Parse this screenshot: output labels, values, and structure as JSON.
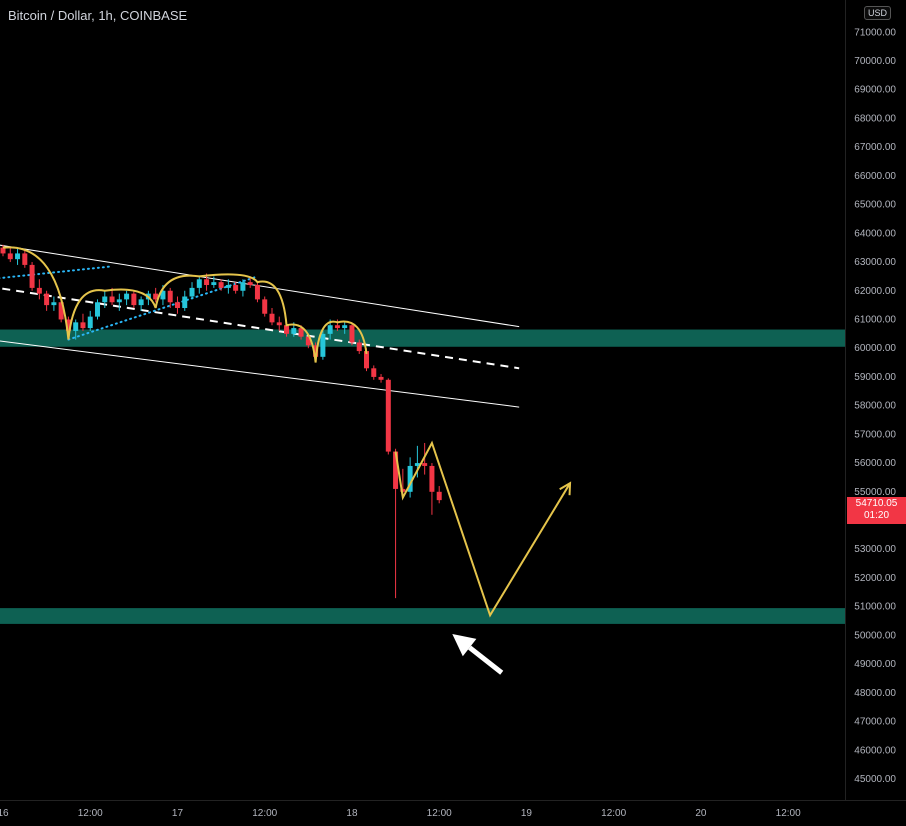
{
  "header": {
    "symbol_title": "Bitcoin / Dollar, 1h, COINBASE",
    "currency_badge": "USD"
  },
  "price_tag": {
    "price": "54710.05",
    "countdown": "01:20",
    "color": "#f23645"
  },
  "colors": {
    "background": "#000000",
    "up": "#26c6da",
    "down": "#f23645",
    "zone": "#0f6b5c",
    "projection": "#e5c44b",
    "channel": "#ffffff",
    "dotted_trend": "#29b6f6"
  },
  "chart_data": {
    "type": "candlestick",
    "symbol": "Bitcoin / Dollar",
    "timeframe": "1h",
    "exchange": "COINBASE",
    "y_axis": {
      "range": [
        44600,
        72500
      ],
      "ticks": [
        "45000.00",
        "46000.00",
        "47000.00",
        "48000.00",
        "49000.00",
        "50000.00",
        "51000.00",
        "52000.00",
        "53000.00",
        "54000.00",
        "55000.00",
        "56000.00",
        "57000.00",
        "58000.00",
        "59000.00",
        "60000.00",
        "61000.00",
        "62000.00",
        "63000.00",
        "64000.00",
        "65000.00",
        "66000.00",
        "67000.00",
        "68000.00",
        "69000.00",
        "70000.00",
        "71000.00"
      ]
    },
    "x_axis": {
      "ticks": [
        "16",
        "12:00",
        "17",
        "12:00",
        "18",
        "12:00",
        "19",
        "12:00",
        "20",
        "12:00"
      ],
      "tick_hours": [
        0,
        12,
        24,
        36,
        48,
        60,
        72,
        84,
        96,
        108
      ]
    },
    "candles": [
      {
        "t": 0,
        "o": 63500,
        "h": 63600,
        "l": 63200,
        "c": 63300
      },
      {
        "t": 1,
        "o": 63300,
        "h": 63500,
        "l": 63000,
        "c": 63100
      },
      {
        "t": 2,
        "o": 63100,
        "h": 63500,
        "l": 62900,
        "c": 63300
      },
      {
        "t": 3,
        "o": 63300,
        "h": 63400,
        "l": 62800,
        "c": 62900
      },
      {
        "t": 4,
        "o": 62900,
        "h": 63000,
        "l": 62000,
        "c": 62100
      },
      {
        "t": 5,
        "o": 62100,
        "h": 62400,
        "l": 61700,
        "c": 61900
      },
      {
        "t": 6,
        "o": 61900,
        "h": 62000,
        "l": 61300,
        "c": 61500
      },
      {
        "t": 7,
        "o": 61500,
        "h": 61800,
        "l": 61300,
        "c": 61600
      },
      {
        "t": 8,
        "o": 61600,
        "h": 61700,
        "l": 60900,
        "c": 61000
      },
      {
        "t": 9,
        "o": 61000,
        "h": 61100,
        "l": 60400,
        "c": 60600
      },
      {
        "t": 10,
        "o": 60600,
        "h": 61000,
        "l": 60300,
        "c": 60900
      },
      {
        "t": 11,
        "o": 60900,
        "h": 61200,
        "l": 60600,
        "c": 60700
      },
      {
        "t": 12,
        "o": 60700,
        "h": 61300,
        "l": 60600,
        "c": 61100
      },
      {
        "t": 13,
        "o": 61100,
        "h": 61700,
        "l": 61000,
        "c": 61600
      },
      {
        "t": 14,
        "o": 61600,
        "h": 62000,
        "l": 61400,
        "c": 61800
      },
      {
        "t": 15,
        "o": 61800,
        "h": 62100,
        "l": 61500,
        "c": 61600
      },
      {
        "t": 16,
        "o": 61600,
        "h": 61900,
        "l": 61300,
        "c": 61700
      },
      {
        "t": 17,
        "o": 61700,
        "h": 62000,
        "l": 61500,
        "c": 61900
      },
      {
        "t": 18,
        "o": 61900,
        "h": 62000,
        "l": 61400,
        "c": 61500
      },
      {
        "t": 19,
        "o": 61500,
        "h": 61800,
        "l": 61300,
        "c": 61700
      },
      {
        "t": 20,
        "o": 61700,
        "h": 62000,
        "l": 61500,
        "c": 61900
      },
      {
        "t": 21,
        "o": 61900,
        "h": 62100,
        "l": 61600,
        "c": 61700
      },
      {
        "t": 22,
        "o": 61700,
        "h": 62200,
        "l": 61500,
        "c": 62000
      },
      {
        "t": 23,
        "o": 62000,
        "h": 62100,
        "l": 61400,
        "c": 61600
      },
      {
        "t": 24,
        "o": 61600,
        "h": 61800,
        "l": 61200,
        "c": 61400
      },
      {
        "t": 25,
        "o": 61400,
        "h": 62000,
        "l": 61300,
        "c": 61800
      },
      {
        "t": 26,
        "o": 61800,
        "h": 62300,
        "l": 61700,
        "c": 62100
      },
      {
        "t": 27,
        "o": 62100,
        "h": 62500,
        "l": 61900,
        "c": 62400
      },
      {
        "t": 28,
        "o": 62400,
        "h": 62600,
        "l": 62000,
        "c": 62200
      },
      {
        "t": 29,
        "o": 62200,
        "h": 62500,
        "l": 62100,
        "c": 62300
      },
      {
        "t": 30,
        "o": 62300,
        "h": 62400,
        "l": 62000,
        "c": 62100
      },
      {
        "t": 31,
        "o": 62100,
        "h": 62400,
        "l": 61900,
        "c": 62200
      },
      {
        "t": 32,
        "o": 62200,
        "h": 62300,
        "l": 61900,
        "c": 62000
      },
      {
        "t": 33,
        "o": 62000,
        "h": 62400,
        "l": 61800,
        "c": 62300
      },
      {
        "t": 34,
        "o": 62300,
        "h": 62500,
        "l": 62100,
        "c": 62200
      },
      {
        "t": 35,
        "o": 62200,
        "h": 62300,
        "l": 61600,
        "c": 61700
      },
      {
        "t": 36,
        "o": 61700,
        "h": 61800,
        "l": 61100,
        "c": 61200
      },
      {
        "t": 37,
        "o": 61200,
        "h": 61400,
        "l": 60800,
        "c": 60900
      },
      {
        "t": 38,
        "o": 60900,
        "h": 61100,
        "l": 60600,
        "c": 60800
      },
      {
        "t": 39,
        "o": 60800,
        "h": 60900,
        "l": 60400,
        "c": 60500
      },
      {
        "t": 40,
        "o": 60500,
        "h": 60900,
        "l": 60400,
        "c": 60700
      },
      {
        "t": 41,
        "o": 60700,
        "h": 60800,
        "l": 60300,
        "c": 60400
      },
      {
        "t": 42,
        "o": 60400,
        "h": 60500,
        "l": 60000,
        "c": 60100
      },
      {
        "t": 43,
        "o": 60100,
        "h": 60200,
        "l": 59600,
        "c": 59700
      },
      {
        "t": 44,
        "o": 59700,
        "h": 60600,
        "l": 59600,
        "c": 60500
      },
      {
        "t": 45,
        "o": 60500,
        "h": 61000,
        "l": 60300,
        "c": 60800
      },
      {
        "t": 46,
        "o": 60800,
        "h": 61000,
        "l": 60600,
        "c": 60700
      },
      {
        "t": 47,
        "o": 60700,
        "h": 60900,
        "l": 60500,
        "c": 60800
      },
      {
        "t": 48,
        "o": 60800,
        "h": 60900,
        "l": 60100,
        "c": 60200
      },
      {
        "t": 49,
        "o": 60200,
        "h": 60300,
        "l": 59800,
        "c": 59900
      },
      {
        "t": 50,
        "o": 59900,
        "h": 60000,
        "l": 59200,
        "c": 59300
      },
      {
        "t": 51,
        "o": 59300,
        "h": 59400,
        "l": 58900,
        "c": 59000
      },
      {
        "t": 52,
        "o": 59000,
        "h": 59100,
        "l": 58800,
        "c": 58900
      },
      {
        "t": 53,
        "o": 58900,
        "h": 58950,
        "l": 56300,
        "c": 56400
      },
      {
        "t": 54,
        "o": 56400,
        "h": 56500,
        "l": 51300,
        "c": 55100
      },
      {
        "t": 55,
        "o": 55100,
        "h": 55800,
        "l": 54900,
        "c": 55000
      },
      {
        "t": 56,
        "o": 55000,
        "h": 56200,
        "l": 54800,
        "c": 55900
      },
      {
        "t": 57,
        "o": 55900,
        "h": 56600,
        "l": 55500,
        "c": 56000
      },
      {
        "t": 58,
        "o": 56000,
        "h": 56700,
        "l": 55600,
        "c": 55900
      },
      {
        "t": 59,
        "o": 55900,
        "h": 56000,
        "l": 54200,
        "c": 55000
      },
      {
        "t": 60,
        "o": 55000,
        "h": 55200,
        "l": 54600,
        "c": 54710
      }
    ],
    "zones": [
      {
        "from": 60050,
        "to": 60650
      },
      {
        "from": 50400,
        "to": 50950
      }
    ],
    "channel_lines": [
      {
        "x1": -2,
        "y1": 63650,
        "x2": 71,
        "y2": 60750,
        "style": "solid"
      },
      {
        "x1": -2,
        "y1": 60300,
        "x2": 71,
        "y2": 57950,
        "style": "solid"
      },
      {
        "x1": -2,
        "y1": 62150,
        "x2": 71,
        "y2": 59300,
        "style": "dashed"
      }
    ],
    "dotted_lines": [
      {
        "x1": -2,
        "y1": 62400,
        "x2": 15,
        "y2": 62850
      },
      {
        "x1": 9,
        "y1": 60300,
        "x2": 35,
        "y2": 62500
      }
    ],
    "arc_path": [
      {
        "x": 0,
        "y": 63500
      },
      {
        "x": 9,
        "y": 60300
      },
      {
        "x": 14,
        "y": 62000
      },
      {
        "x": 21,
        "y": 61400
      },
      {
        "x": 27,
        "y": 62500
      },
      {
        "x": 35,
        "y": 62300
      },
      {
        "x": 39,
        "y": 60800
      },
      {
        "x": 43,
        "y": 59500
      },
      {
        "x": 46,
        "y": 60900
      },
      {
        "x": 50,
        "y": 59800
      }
    ],
    "projection_path": [
      {
        "x": 54,
        "y": 56400
      },
      {
        "x": 55,
        "y": 54800
      },
      {
        "x": 59,
        "y": 56700
      },
      {
        "x": 67,
        "y": 50700
      },
      {
        "x": 78,
        "y": 55300
      }
    ],
    "projection_arrow": {
      "from": {
        "x": 68.6,
        "y": 48700
      },
      "to": {
        "x": 61.8,
        "y": 50050
      }
    }
  }
}
